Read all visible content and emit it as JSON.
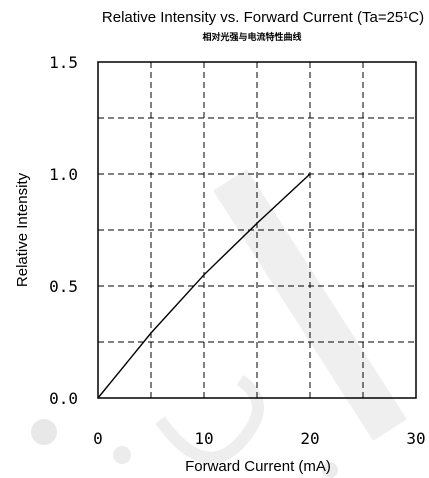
{
  "chart_data": {
    "type": "line",
    "title": "Relative Intensity vs. Forward Current (Ta=25¹C)",
    "subtitle": "相对光强与电流特性曲线",
    "xlabel": "Forward Current (mA)",
    "ylabel": "Relative Intensity",
    "xlim": [
      0,
      30
    ],
    "ylim": [
      0,
      1.5
    ],
    "x_ticks": [
      "0",
      "10",
      "20",
      "30"
    ],
    "y_ticks": [
      "0.0",
      "0.5",
      "1.0",
      "1.5"
    ],
    "grid": true,
    "series": [
      {
        "x": [
          0,
          5,
          10,
          15,
          20
        ],
        "y": [
          0,
          0.29,
          0.55,
          0.78,
          1.0
        ]
      }
    ],
    "colors": {
      "line": "#000000",
      "grid": "#000000",
      "watermark": "#e8e8e8"
    }
  }
}
